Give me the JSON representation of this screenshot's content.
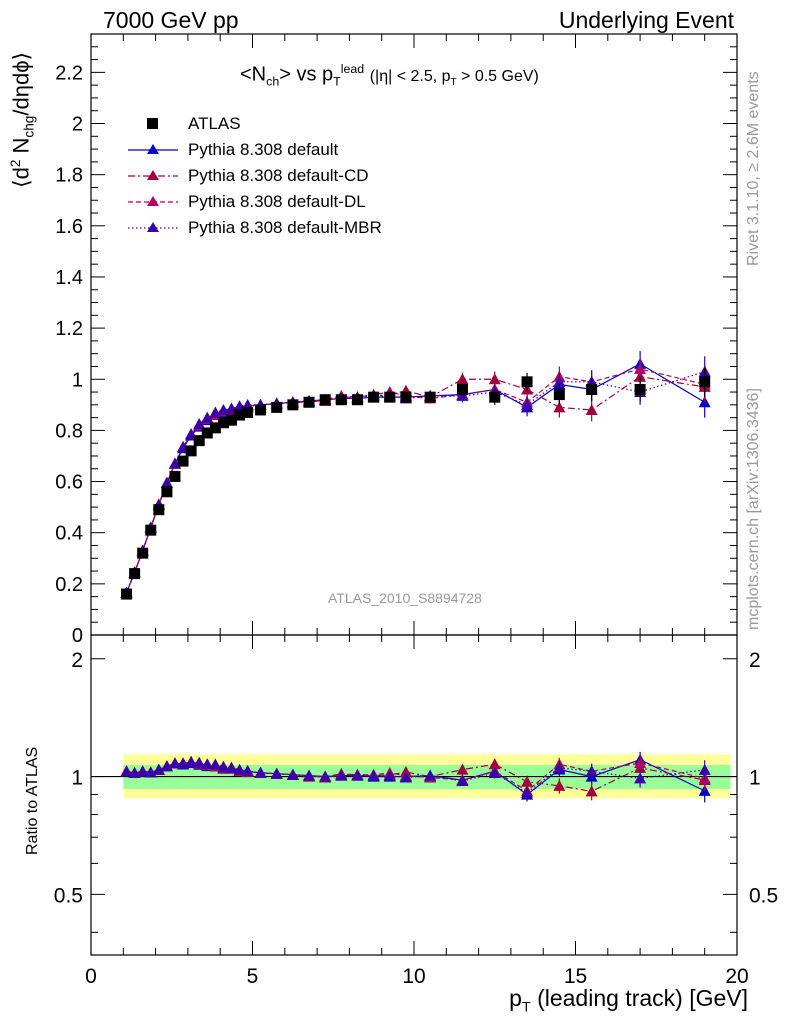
{
  "header": {
    "left": "7000 GeV pp",
    "right": "Underlying Event"
  },
  "side_labels": {
    "rivet": "Rivet 3.1.10, ≥ 2.6M events",
    "mcplots": "mcplots.cern.ch [arXiv:1306.3436]"
  },
  "plot_title": {
    "lhs": "<N",
    "lhs_sub": "ch",
    "vs": "> vs p",
    "vs_sub": "T",
    "vs_sup": "lead",
    "cuts_pre": "(|η| < 2.5, p",
    "cuts_sub": "T",
    "cuts_post": " > 0.5 GeV)"
  },
  "analysis_id": "ATLAS_2010_S8894728",
  "y_axis_top": {
    "pre": "⟨d",
    "sup": "2",
    "mid": " N",
    "sub": "chg",
    "post": "/dηdϕ⟩"
  },
  "y_axis_bottom": "Ratio to ATLAS",
  "x_axis": {
    "pre": "p",
    "sub": "T",
    "post": " (leading track) [GeV]"
  },
  "legend": [
    {
      "label": "ATLAS",
      "color": "#000000",
      "marker": "square",
      "style": "none"
    },
    {
      "label": "Pythia 8.308 default",
      "color": "#0000cc",
      "marker": "triangle",
      "style": "solid"
    },
    {
      "label": "Pythia 8.308 default-CD",
      "color": "#a0003c",
      "marker": "triangle",
      "style": "dashdot"
    },
    {
      "label": "Pythia 8.308 default-DL",
      "color": "#b00060",
      "marker": "triangle",
      "style": "dashed"
    },
    {
      "label": "Pythia 8.308 default-MBR",
      "color": "#3a00aa",
      "marker": "triangle",
      "style": "dotted"
    }
  ],
  "chart_data": {
    "type": "scatter",
    "x_label": "p_T (leading track) [GeV]",
    "x_ticks": [
      "0",
      "5",
      "10",
      "15",
      "20"
    ],
    "xlim": [
      0,
      20
    ],
    "main": {
      "ylim": [
        0,
        2.35
      ],
      "y_ticks": [
        "0",
        "0.2",
        "0.4",
        "0.6",
        "0.8",
        "1",
        "1.2",
        "1.4",
        "1.6",
        "1.8",
        "2",
        "2.2"
      ],
      "log_y": false
    },
    "ratio": {
      "ylim": [
        0.35,
        2.3
      ],
      "y_ticks": [
        "0.5",
        "1",
        "2"
      ],
      "log_y": true,
      "band_inner": [
        0.93,
        1.07
      ],
      "band_outer": [
        0.88,
        1.14
      ]
    },
    "x": [
      1.1,
      1.35,
      1.6,
      1.85,
      2.1,
      2.35,
      2.6,
      2.85,
      3.1,
      3.35,
      3.6,
      3.85,
      4.1,
      4.35,
      4.6,
      4.85,
      5.25,
      5.75,
      6.25,
      6.75,
      7.25,
      7.75,
      8.25,
      8.75,
      9.25,
      9.75,
      10.5,
      11.5,
      12.5,
      13.5,
      14.5,
      15.5,
      17.0,
      19.0
    ],
    "series": [
      {
        "name": "ATLAS",
        "values": [
          0.16,
          0.24,
          0.32,
          0.41,
          0.49,
          0.56,
          0.62,
          0.68,
          0.72,
          0.76,
          0.79,
          0.81,
          0.83,
          0.84,
          0.86,
          0.87,
          0.88,
          0.89,
          0.9,
          0.91,
          0.92,
          0.92,
          0.92,
          0.93,
          0.93,
          0.93,
          0.93,
          0.96,
          0.93,
          0.99,
          0.94,
          0.96,
          0.96,
          0.99
        ],
        "errors": [
          0.005,
          0.005,
          0.005,
          0.005,
          0.005,
          0.005,
          0.005,
          0.005,
          0.006,
          0.006,
          0.006,
          0.006,
          0.007,
          0.007,
          0.007,
          0.008,
          0.008,
          0.008,
          0.009,
          0.009,
          0.01,
          0.01,
          0.012,
          0.012,
          0.014,
          0.015,
          0.02,
          0.025,
          0.03,
          0.035,
          0.04,
          0.045,
          0.05,
          0.06
        ]
      },
      {
        "name": "Pythia 8.308 default",
        "values": [
          0.165,
          0.245,
          0.33,
          0.42,
          0.51,
          0.595,
          0.67,
          0.73,
          0.78,
          0.815,
          0.84,
          0.86,
          0.87,
          0.88,
          0.89,
          0.895,
          0.9,
          0.905,
          0.91,
          0.915,
          0.92,
          0.925,
          0.925,
          0.93,
          0.93,
          0.93,
          0.935,
          0.94,
          0.96,
          0.89,
          0.98,
          0.96,
          1.06,
          0.91
        ],
        "errors": [
          0.003,
          0.003,
          0.003,
          0.003,
          0.003,
          0.003,
          0.003,
          0.003,
          0.004,
          0.004,
          0.004,
          0.005,
          0.005,
          0.005,
          0.005,
          0.006,
          0.006,
          0.007,
          0.008,
          0.009,
          0.01,
          0.011,
          0.012,
          0.013,
          0.015,
          0.016,
          0.02,
          0.025,
          0.03,
          0.035,
          0.04,
          0.045,
          0.05,
          0.06
        ]
      },
      {
        "name": "Pythia 8.308 default-CD",
        "values": [
          0.165,
          0.245,
          0.33,
          0.42,
          0.51,
          0.595,
          0.67,
          0.735,
          0.785,
          0.82,
          0.845,
          0.865,
          0.875,
          0.885,
          0.89,
          0.895,
          0.9,
          0.905,
          0.91,
          0.91,
          0.92,
          0.935,
          0.93,
          0.935,
          0.94,
          0.955,
          0.93,
          1.0,
          1.0,
          0.96,
          0.89,
          0.88,
          1.01,
          0.97
        ],
        "errors": [
          0.003,
          0.003,
          0.003,
          0.003,
          0.003,
          0.003,
          0.003,
          0.003,
          0.004,
          0.004,
          0.004,
          0.005,
          0.005,
          0.005,
          0.005,
          0.006,
          0.006,
          0.007,
          0.008,
          0.009,
          0.01,
          0.011,
          0.012,
          0.013,
          0.015,
          0.016,
          0.02,
          0.025,
          0.03,
          0.035,
          0.04,
          0.045,
          0.05,
          0.06
        ]
      },
      {
        "name": "Pythia 8.308 default-DL",
        "values": [
          0.165,
          0.245,
          0.33,
          0.42,
          0.51,
          0.595,
          0.67,
          0.735,
          0.785,
          0.82,
          0.845,
          0.86,
          0.875,
          0.88,
          0.89,
          0.895,
          0.9,
          0.905,
          0.91,
          0.915,
          0.915,
          0.93,
          0.93,
          0.94,
          0.95,
          0.935,
          0.925,
          0.94,
          0.96,
          0.91,
          1.01,
          0.99,
          1.04,
          0.98
        ],
        "errors": [
          0.003,
          0.003,
          0.003,
          0.003,
          0.003,
          0.003,
          0.003,
          0.003,
          0.004,
          0.004,
          0.004,
          0.005,
          0.005,
          0.005,
          0.005,
          0.006,
          0.006,
          0.007,
          0.008,
          0.009,
          0.01,
          0.011,
          0.012,
          0.013,
          0.015,
          0.016,
          0.02,
          0.025,
          0.03,
          0.035,
          0.04,
          0.045,
          0.05,
          0.06
        ]
      },
      {
        "name": "Pythia 8.308 default-MBR",
        "values": [
          0.165,
          0.245,
          0.33,
          0.42,
          0.51,
          0.595,
          0.67,
          0.735,
          0.785,
          0.825,
          0.85,
          0.87,
          0.88,
          0.885,
          0.895,
          0.9,
          0.9,
          0.905,
          0.91,
          0.915,
          0.92,
          0.925,
          0.925,
          0.935,
          0.935,
          0.925,
          0.935,
          0.935,
          0.95,
          0.9,
          0.99,
          0.99,
          0.95,
          1.03
        ],
        "errors": [
          0.003,
          0.003,
          0.003,
          0.003,
          0.003,
          0.003,
          0.003,
          0.003,
          0.004,
          0.004,
          0.004,
          0.005,
          0.005,
          0.005,
          0.005,
          0.006,
          0.006,
          0.007,
          0.008,
          0.009,
          0.01,
          0.011,
          0.012,
          0.013,
          0.015,
          0.016,
          0.02,
          0.025,
          0.03,
          0.035,
          0.04,
          0.045,
          0.05,
          0.06
        ]
      }
    ]
  }
}
